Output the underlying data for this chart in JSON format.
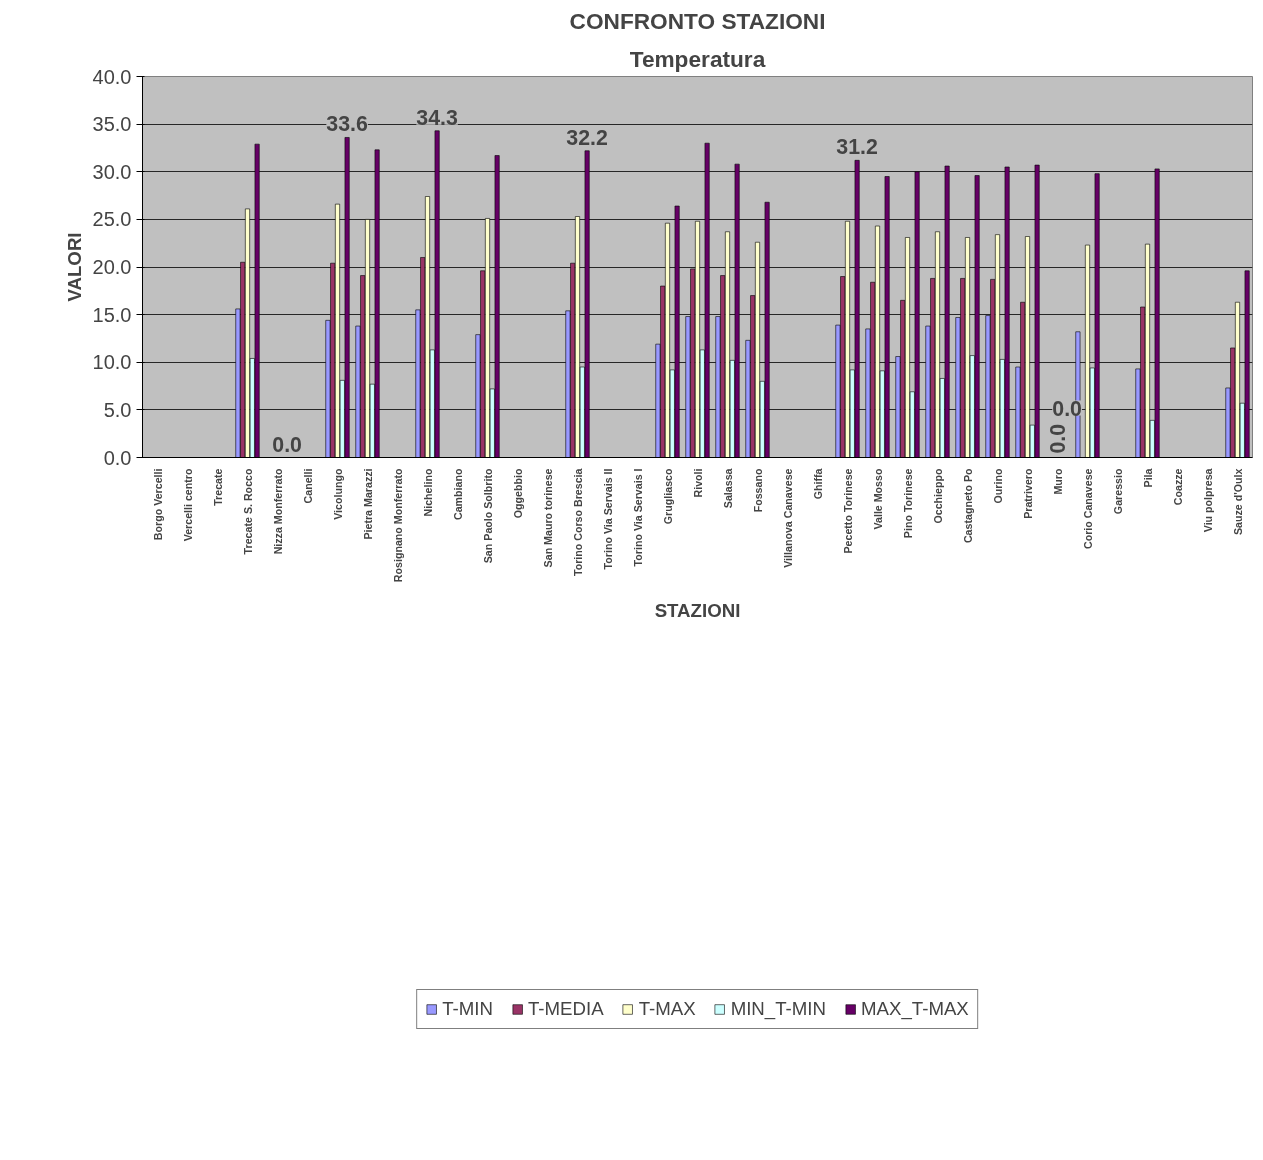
{
  "chart_data": {
    "type": "bar",
    "title": "CONFRONTO STAZIONI",
    "subtitle": "Temperatura",
    "xlabel": "STAZIONI",
    "ylabel": "VALORI",
    "categories": [
      "Borgo Vercelli",
      "Vercelli centro",
      "Trecate",
      "Trecate S. Rocco",
      "Nizza Monferrato",
      "Canelli",
      "Vicolungo",
      "Pietra Marazzi",
      "Rosignano Monferrato",
      "Nichelino",
      "Cambiano",
      "San Paolo Solbrito",
      "Oggebbio",
      "San Mauro torinese",
      "Torino Corso Brescia",
      "Torino Via Servais II",
      "Torino Via Servais I",
      "Grugliasco",
      "Rivoli",
      "Salassa",
      "Fossano",
      "Villanova Canavese",
      "Ghiffa",
      "Pecetto Torinese",
      "Valle Mosso",
      "Pino Torinese",
      "Occhieppo",
      "Castagneto Po",
      "Ourino",
      "Pratrivero",
      "Muro",
      "Corio Canavese",
      "Garessio",
      "Pila",
      "Coazze",
      "Viu polpresa",
      "Sauze d'Oulx"
    ],
    "series": [
      {
        "name": "T-MIN",
        "color": "#9999ff",
        "values": [
          null,
          null,
          null,
          15.6,
          null,
          null,
          14.4,
          13.8,
          null,
          15.5,
          null,
          12.9,
          null,
          null,
          15.4,
          null,
          null,
          11.9,
          14.8,
          14.8,
          12.3,
          null,
          null,
          13.9,
          13.5,
          10.6,
          13.8,
          14.7,
          14.9,
          9.5,
          null,
          13.2,
          null,
          9.3,
          null,
          null,
          7.3
        ]
      },
      {
        "name": "T-MEDIA",
        "color": "#993366",
        "values": [
          null,
          null,
          null,
          20.5,
          null,
          null,
          20.4,
          19.1,
          null,
          21.0,
          null,
          19.6,
          null,
          null,
          20.4,
          null,
          null,
          18.0,
          19.8,
          19.1,
          17.0,
          null,
          null,
          19.0,
          18.4,
          16.5,
          18.8,
          18.8,
          18.7,
          16.3,
          null,
          null,
          null,
          15.8,
          null,
          null,
          11.5
        ]
      },
      {
        "name": "T-MAX",
        "color": "#ffffcc",
        "values": [
          null,
          null,
          null,
          26.1,
          null,
          null,
          26.6,
          25.0,
          null,
          27.4,
          null,
          25.1,
          null,
          null,
          25.3,
          null,
          null,
          24.6,
          24.8,
          23.7,
          22.6,
          null,
          null,
          24.8,
          24.3,
          23.1,
          23.7,
          23.1,
          23.4,
          23.2,
          0.0,
          22.3,
          null,
          22.4,
          null,
          null,
          16.3
        ],
        "value_labels": [
          null,
          null,
          null,
          null,
          null,
          null,
          null,
          null,
          null,
          null,
          null,
          null,
          null,
          null,
          null,
          null,
          null,
          null,
          null,
          null,
          null,
          null,
          null,
          null,
          null,
          null,
          null,
          null,
          null,
          null,
          "0.0",
          null,
          null,
          null,
          null,
          null,
          null
        ]
      },
      {
        "name": "MIN_T-MIN",
        "color": "#ccffff",
        "values": [
          null,
          null,
          null,
          10.4,
          null,
          null,
          8.1,
          7.7,
          null,
          11.3,
          null,
          7.2,
          null,
          null,
          9.5,
          null,
          null,
          9.2,
          11.3,
          10.2,
          8.0,
          null,
          null,
          9.2,
          9.1,
          6.9,
          8.3,
          10.7,
          10.3,
          3.4,
          null,
          9.4,
          null,
          3.9,
          null,
          null,
          5.7
        ]
      },
      {
        "name": "MAX_T-MAX",
        "color": "#660066",
        "values": [
          null,
          null,
          null,
          32.9,
          0.0,
          null,
          33.6,
          32.3,
          null,
          34.3,
          null,
          31.7,
          null,
          null,
          32.2,
          null,
          null,
          26.4,
          33.0,
          30.8,
          26.8,
          null,
          null,
          31.2,
          29.5,
          30.0,
          30.6,
          29.6,
          30.5,
          30.7,
          0.0,
          29.8,
          null,
          30.3,
          null,
          null,
          19.6
        ],
        "value_labels": [
          null,
          null,
          null,
          null,
          "0.0",
          null,
          "33.6",
          null,
          null,
          "34.3",
          null,
          null,
          null,
          null,
          "32.2",
          null,
          null,
          null,
          null,
          null,
          null,
          null,
          null,
          "31.2",
          null,
          null,
          null,
          null,
          null,
          null,
          "0.0",
          null,
          null,
          null,
          null,
          null,
          null
        ]
      }
    ],
    "ylim": [
      0,
      40
    ],
    "yticks": [
      {
        "value": 0,
        "label": "0.0"
      },
      {
        "value": 5,
        "label": "5.0"
      },
      {
        "value": 10,
        "label": "10.0"
      },
      {
        "value": 15,
        "label": "15.0"
      },
      {
        "value": 20,
        "label": "20.0"
      },
      {
        "value": 25,
        "label": "25.0"
      },
      {
        "value": 30,
        "label": "30.0"
      },
      {
        "value": 35,
        "label": "35.0"
      },
      {
        "value": 40,
        "label": "40.0"
      }
    ],
    "grid": "y",
    "legend": "bottom"
  }
}
